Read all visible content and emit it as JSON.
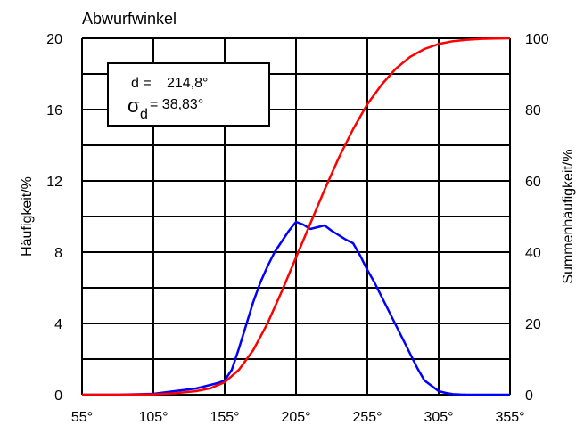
{
  "chart_data": {
    "type": "line",
    "title": "Abwurfwinkel",
    "xlabel": "",
    "ylabel_left": "Häufigkeit/%",
    "ylabel_right": "Summenhäufigkeit/%",
    "xlim": [
      55,
      355
    ],
    "ylim_left": [
      0,
      20
    ],
    "ylim_right": [
      0,
      100
    ],
    "x_ticks": [
      "55°",
      "105°",
      "155°",
      "205°",
      "255°",
      "305°",
      "355°"
    ],
    "y_ticks_left": [
      "0",
      "4",
      "8",
      "12",
      "16",
      "20"
    ],
    "y_ticks_right": [
      "0",
      "20",
      "40",
      "60",
      "80",
      "100"
    ],
    "grid": true,
    "legend": "none",
    "annotation": {
      "d_label": "d = ",
      "d_value": "214,8°",
      "sigma_symbol": "σ",
      "sigma_sub": "d",
      "sigma_value": "= 38,83°"
    },
    "series": [
      {
        "axis": "left",
        "color": "#0000ff",
        "x": [
          55,
          80,
          105,
          115,
          125,
          135,
          140,
          145,
          150,
          155,
          160,
          165,
          170,
          175,
          180,
          185,
          190,
          195,
          200,
          205,
          210,
          215,
          220,
          225,
          230,
          235,
          240,
          245,
          250,
          255,
          260,
          265,
          270,
          275,
          280,
          285,
          290,
          295,
          300,
          305,
          310,
          315,
          320,
          325,
          330,
          335,
          340,
          345,
          350,
          355
        ],
        "values": [
          0,
          0,
          0.05,
          0.15,
          0.25,
          0.35,
          0.45,
          0.55,
          0.65,
          0.8,
          1.4,
          2.6,
          3.9,
          5.2,
          6.3,
          7.2,
          8.0,
          8.6,
          9.2,
          9.7,
          9.55,
          9.3,
          9.4,
          9.5,
          9.2,
          8.95,
          8.7,
          8.5,
          7.8,
          7.0,
          6.3,
          5.5,
          4.7,
          3.9,
          3.1,
          2.3,
          1.5,
          0.8,
          0.5,
          0.2,
          0.1,
          0.03,
          0.01,
          0,
          0,
          0,
          0,
          0,
          0,
          0
        ]
      },
      {
        "axis": "right",
        "color": "#ff0000",
        "x": [
          55,
          80,
          105,
          120,
          135,
          145,
          155,
          165,
          175,
          185,
          195,
          205,
          215,
          225,
          235,
          245,
          255,
          265,
          275,
          285,
          295,
          305,
          315,
          325,
          335,
          345,
          355
        ],
        "values": [
          0,
          0,
          0.1,
          0.4,
          1.0,
          1.8,
          3.5,
          7.0,
          12.5,
          20.0,
          29.0,
          38.5,
          48.0,
          57.5,
          66.5,
          74.5,
          81.5,
          87.0,
          91.5,
          94.8,
          97.0,
          98.4,
          99.2,
          99.6,
          99.85,
          99.95,
          100
        ]
      }
    ]
  }
}
